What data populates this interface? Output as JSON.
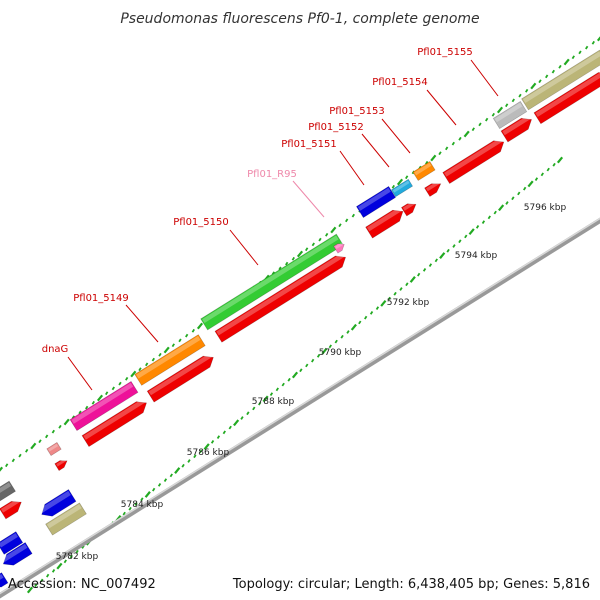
{
  "title": "Pseudomonas fluorescens Pf0-1, complete genome",
  "footer": {
    "accession": "Accession: NC_007492",
    "topology": "Topology: circular; Length: 6,438,405 bp; Genes: 5,816"
  },
  "scale_labels": [
    "5782 kbp",
    "5784 kbp",
    "5786 kbp",
    "5788 kbp",
    "5790 kbp",
    "5792 kbp",
    "5794 kbp",
    "5796 kbp"
  ],
  "gene_labels": [
    {
      "text": "dnaG",
      "type": "cds"
    },
    {
      "text": "Pfl01_5149",
      "type": "cds"
    },
    {
      "text": "Pfl01_5150",
      "type": "cds"
    },
    {
      "text": "Pfl01_R95",
      "type": "rna"
    },
    {
      "text": "Pfl01_5151",
      "type": "cds"
    },
    {
      "text": "Pfl01_5152",
      "type": "cds"
    },
    {
      "text": "Pfl01_5153",
      "type": "cds"
    },
    {
      "text": "Pfl01_5154",
      "type": "cds"
    },
    {
      "text": "Pfl01_5155",
      "type": "cds"
    }
  ],
  "colors": {
    "cds_label": "#cc0000",
    "rna_label": "#ee88aa",
    "red": "#ee0000",
    "magenta": "#ee1199",
    "orange": "#ff8800",
    "green": "#33cc33",
    "blue": "#0000dd",
    "cyan": "#22aadd",
    "khaki": "#bbb577",
    "gray": "#bbbbbb",
    "darkgray": "#666666",
    "salmon": "#ee8888",
    "pink": "#ff77bb",
    "backbone": "#999999",
    "tick": "#22aa22"
  }
}
